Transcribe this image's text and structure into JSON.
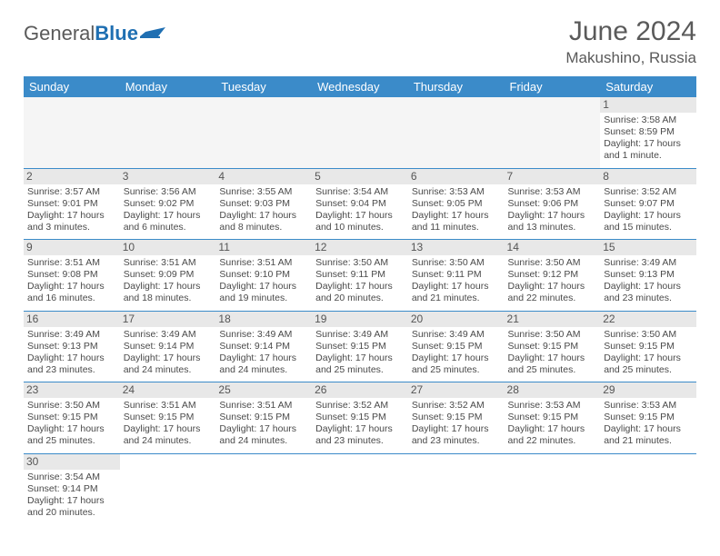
{
  "logo": {
    "text1": "General",
    "text2": "Blue"
  },
  "title": "June 2024",
  "location": "Makushino, Russia",
  "colors": {
    "header_bg": "#3b8bc9",
    "header_text": "#ffffff",
    "daynum_bg": "#e8e8e8",
    "border": "#3b8bc9",
    "text": "#4a4a4a",
    "logo_gray": "#5a5a5a",
    "logo_blue": "#1f6fb2"
  },
  "weekdays": [
    "Sunday",
    "Monday",
    "Tuesday",
    "Wednesday",
    "Thursday",
    "Friday",
    "Saturday"
  ],
  "weeks": [
    [
      null,
      null,
      null,
      null,
      null,
      null,
      {
        "n": "1",
        "sr": "Sunrise: 3:58 AM",
        "ss": "Sunset: 8:59 PM",
        "d1": "Daylight: 17 hours",
        "d2": "and 1 minute."
      }
    ],
    [
      {
        "n": "2",
        "sr": "Sunrise: 3:57 AM",
        "ss": "Sunset: 9:01 PM",
        "d1": "Daylight: 17 hours",
        "d2": "and 3 minutes."
      },
      {
        "n": "3",
        "sr": "Sunrise: 3:56 AM",
        "ss": "Sunset: 9:02 PM",
        "d1": "Daylight: 17 hours",
        "d2": "and 6 minutes."
      },
      {
        "n": "4",
        "sr": "Sunrise: 3:55 AM",
        "ss": "Sunset: 9:03 PM",
        "d1": "Daylight: 17 hours",
        "d2": "and 8 minutes."
      },
      {
        "n": "5",
        "sr": "Sunrise: 3:54 AM",
        "ss": "Sunset: 9:04 PM",
        "d1": "Daylight: 17 hours",
        "d2": "and 10 minutes."
      },
      {
        "n": "6",
        "sr": "Sunrise: 3:53 AM",
        "ss": "Sunset: 9:05 PM",
        "d1": "Daylight: 17 hours",
        "d2": "and 11 minutes."
      },
      {
        "n": "7",
        "sr": "Sunrise: 3:53 AM",
        "ss": "Sunset: 9:06 PM",
        "d1": "Daylight: 17 hours",
        "d2": "and 13 minutes."
      },
      {
        "n": "8",
        "sr": "Sunrise: 3:52 AM",
        "ss": "Sunset: 9:07 PM",
        "d1": "Daylight: 17 hours",
        "d2": "and 15 minutes."
      }
    ],
    [
      {
        "n": "9",
        "sr": "Sunrise: 3:51 AM",
        "ss": "Sunset: 9:08 PM",
        "d1": "Daylight: 17 hours",
        "d2": "and 16 minutes."
      },
      {
        "n": "10",
        "sr": "Sunrise: 3:51 AM",
        "ss": "Sunset: 9:09 PM",
        "d1": "Daylight: 17 hours",
        "d2": "and 18 minutes."
      },
      {
        "n": "11",
        "sr": "Sunrise: 3:51 AM",
        "ss": "Sunset: 9:10 PM",
        "d1": "Daylight: 17 hours",
        "d2": "and 19 minutes."
      },
      {
        "n": "12",
        "sr": "Sunrise: 3:50 AM",
        "ss": "Sunset: 9:11 PM",
        "d1": "Daylight: 17 hours",
        "d2": "and 20 minutes."
      },
      {
        "n": "13",
        "sr": "Sunrise: 3:50 AM",
        "ss": "Sunset: 9:11 PM",
        "d1": "Daylight: 17 hours",
        "d2": "and 21 minutes."
      },
      {
        "n": "14",
        "sr": "Sunrise: 3:50 AM",
        "ss": "Sunset: 9:12 PM",
        "d1": "Daylight: 17 hours",
        "d2": "and 22 minutes."
      },
      {
        "n": "15",
        "sr": "Sunrise: 3:49 AM",
        "ss": "Sunset: 9:13 PM",
        "d1": "Daylight: 17 hours",
        "d2": "and 23 minutes."
      }
    ],
    [
      {
        "n": "16",
        "sr": "Sunrise: 3:49 AM",
        "ss": "Sunset: 9:13 PM",
        "d1": "Daylight: 17 hours",
        "d2": "and 23 minutes."
      },
      {
        "n": "17",
        "sr": "Sunrise: 3:49 AM",
        "ss": "Sunset: 9:14 PM",
        "d1": "Daylight: 17 hours",
        "d2": "and 24 minutes."
      },
      {
        "n": "18",
        "sr": "Sunrise: 3:49 AM",
        "ss": "Sunset: 9:14 PM",
        "d1": "Daylight: 17 hours",
        "d2": "and 24 minutes."
      },
      {
        "n": "19",
        "sr": "Sunrise: 3:49 AM",
        "ss": "Sunset: 9:15 PM",
        "d1": "Daylight: 17 hours",
        "d2": "and 25 minutes."
      },
      {
        "n": "20",
        "sr": "Sunrise: 3:49 AM",
        "ss": "Sunset: 9:15 PM",
        "d1": "Daylight: 17 hours",
        "d2": "and 25 minutes."
      },
      {
        "n": "21",
        "sr": "Sunrise: 3:50 AM",
        "ss": "Sunset: 9:15 PM",
        "d1": "Daylight: 17 hours",
        "d2": "and 25 minutes."
      },
      {
        "n": "22",
        "sr": "Sunrise: 3:50 AM",
        "ss": "Sunset: 9:15 PM",
        "d1": "Daylight: 17 hours",
        "d2": "and 25 minutes."
      }
    ],
    [
      {
        "n": "23",
        "sr": "Sunrise: 3:50 AM",
        "ss": "Sunset: 9:15 PM",
        "d1": "Daylight: 17 hours",
        "d2": "and 25 minutes."
      },
      {
        "n": "24",
        "sr": "Sunrise: 3:51 AM",
        "ss": "Sunset: 9:15 PM",
        "d1": "Daylight: 17 hours",
        "d2": "and 24 minutes."
      },
      {
        "n": "25",
        "sr": "Sunrise: 3:51 AM",
        "ss": "Sunset: 9:15 PM",
        "d1": "Daylight: 17 hours",
        "d2": "and 24 minutes."
      },
      {
        "n": "26",
        "sr": "Sunrise: 3:52 AM",
        "ss": "Sunset: 9:15 PM",
        "d1": "Daylight: 17 hours",
        "d2": "and 23 minutes."
      },
      {
        "n": "27",
        "sr": "Sunrise: 3:52 AM",
        "ss": "Sunset: 9:15 PM",
        "d1": "Daylight: 17 hours",
        "d2": "and 23 minutes."
      },
      {
        "n": "28",
        "sr": "Sunrise: 3:53 AM",
        "ss": "Sunset: 9:15 PM",
        "d1": "Daylight: 17 hours",
        "d2": "and 22 minutes."
      },
      {
        "n": "29",
        "sr": "Sunrise: 3:53 AM",
        "ss": "Sunset: 9:15 PM",
        "d1": "Daylight: 17 hours",
        "d2": "and 21 minutes."
      }
    ],
    [
      {
        "n": "30",
        "sr": "Sunrise: 3:54 AM",
        "ss": "Sunset: 9:14 PM",
        "d1": "Daylight: 17 hours",
        "d2": "and 20 minutes."
      },
      null,
      null,
      null,
      null,
      null,
      null
    ]
  ]
}
